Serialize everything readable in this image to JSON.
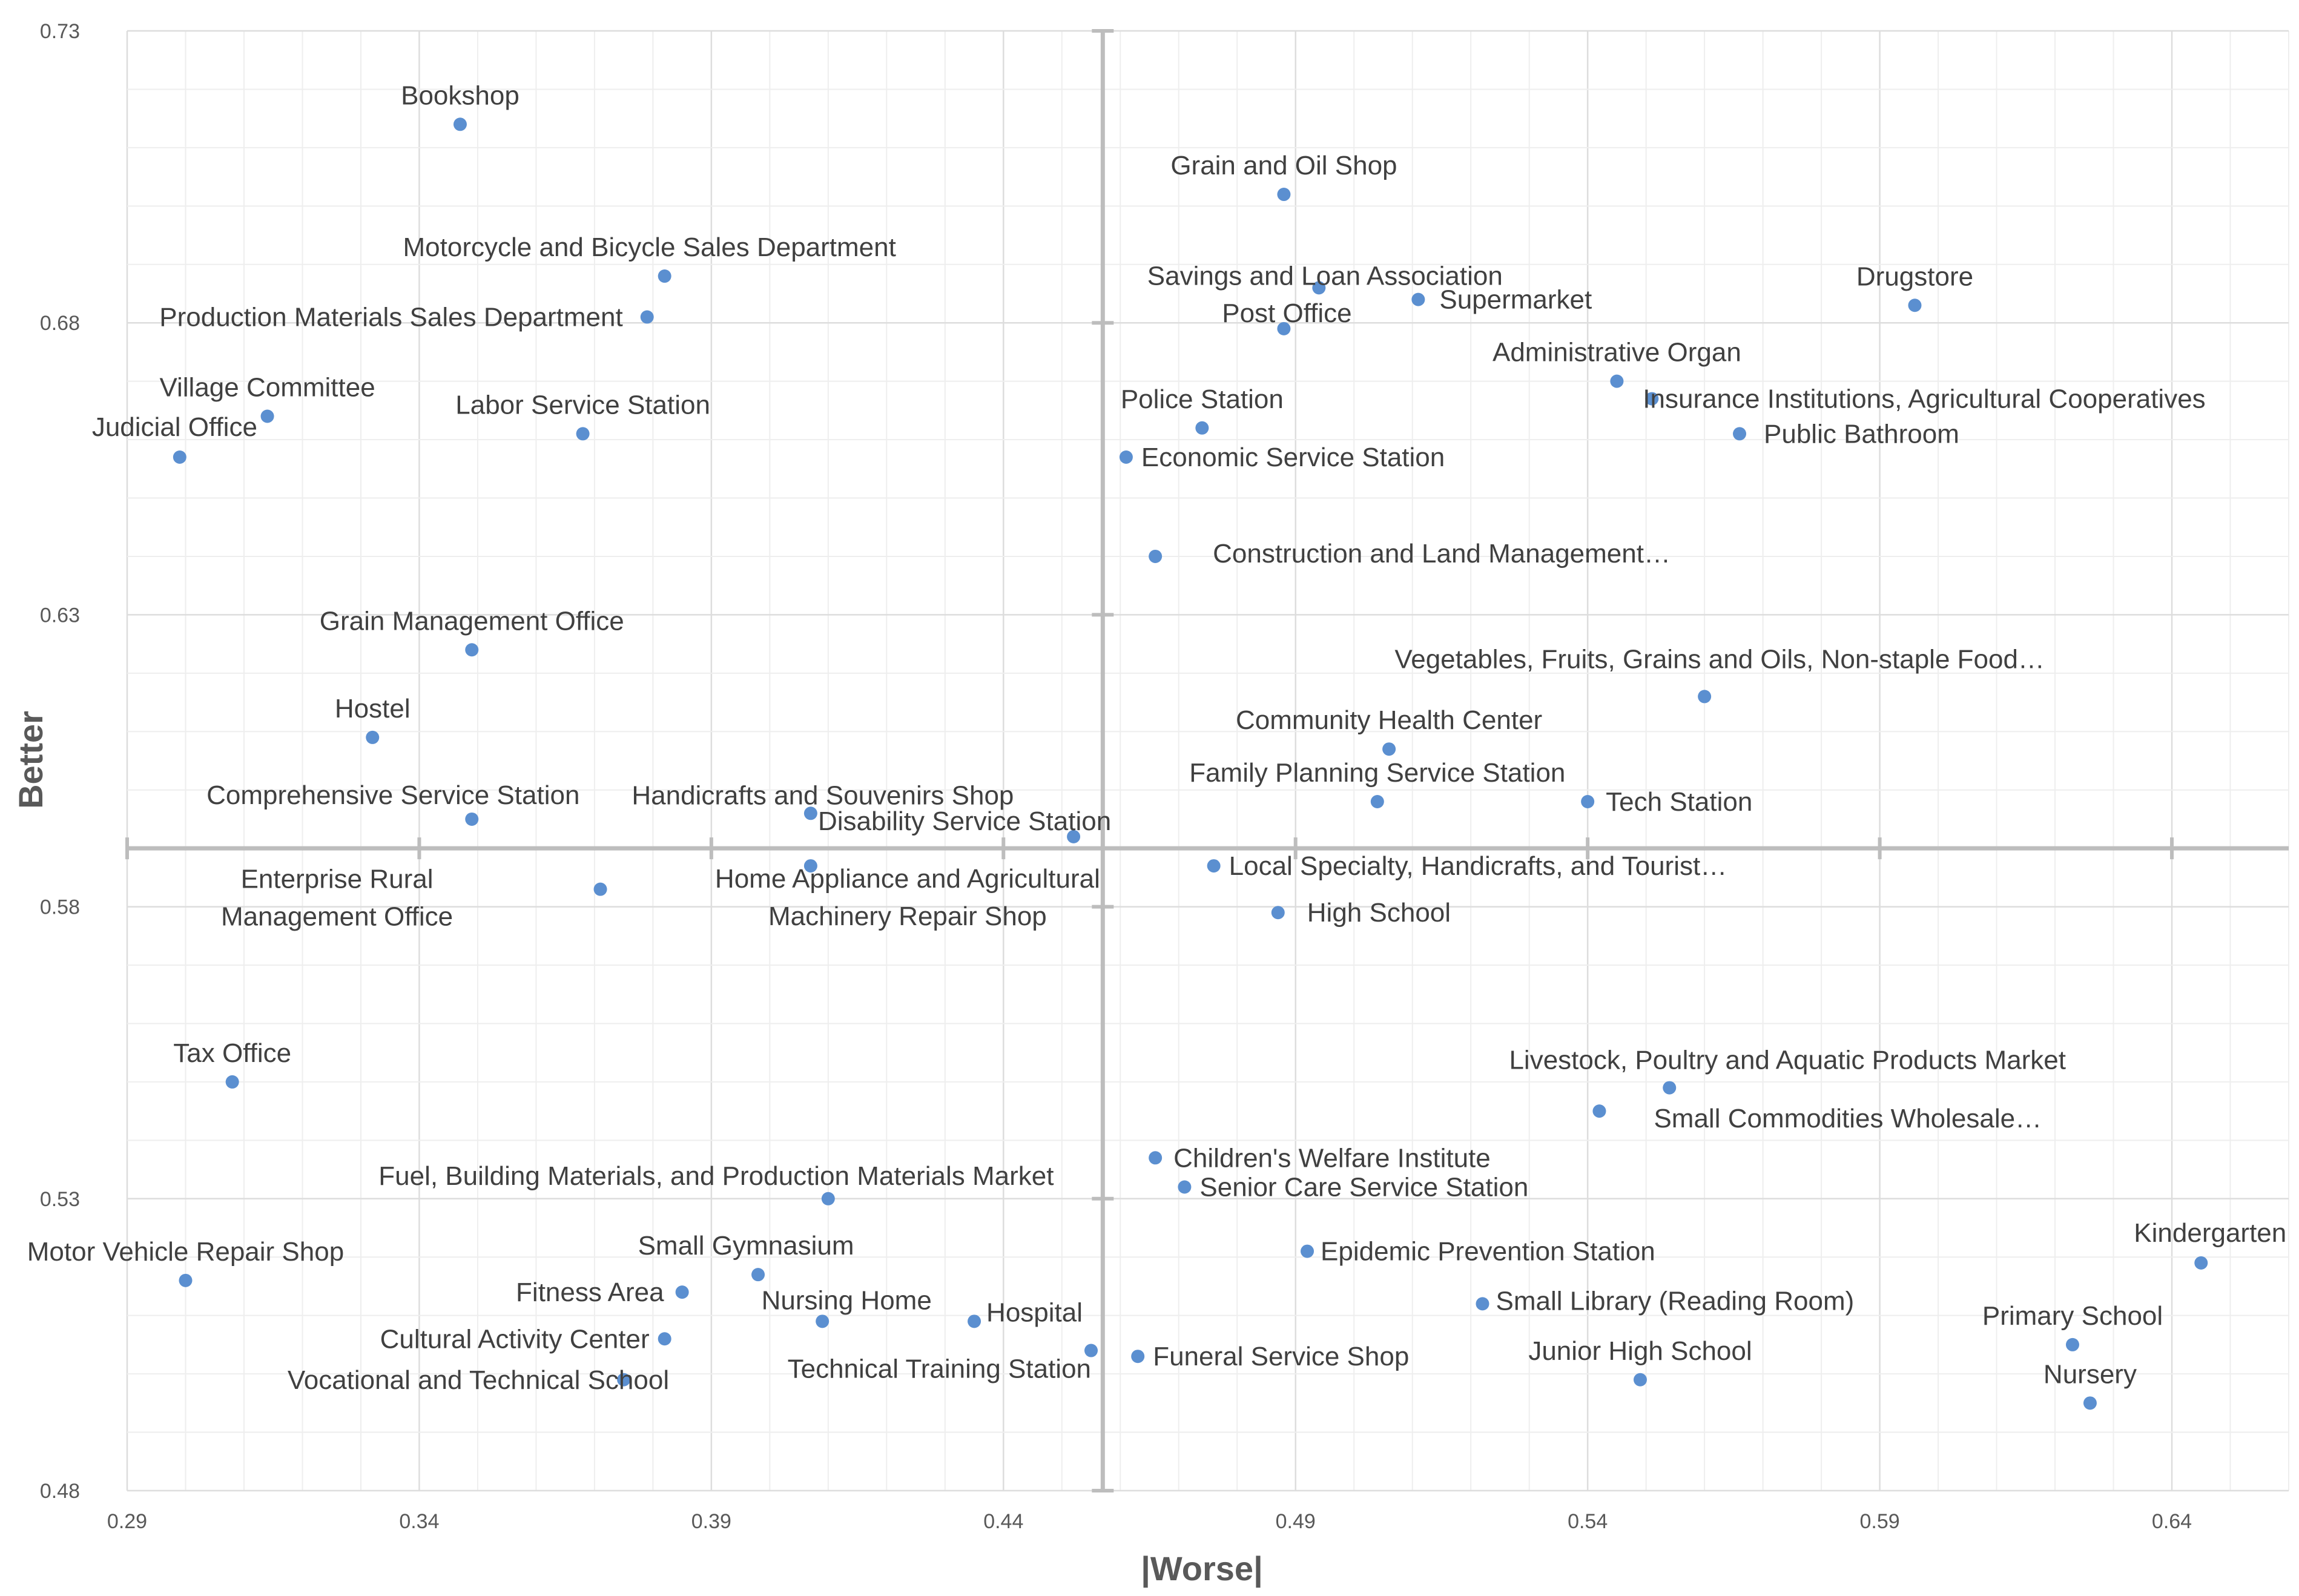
{
  "chart_data": {
    "type": "scatter",
    "title": "",
    "xlabel": "|Worse|",
    "ylabel": "Better",
    "xlim": [
      0.29,
      0.66
    ],
    "ylim": [
      0.48,
      0.73
    ],
    "x_ticks": [
      "0.29",
      "0.34",
      "0.39",
      "0.44",
      "0.49",
      "0.54",
      "0.59",
      "0.64"
    ],
    "y_ticks": [
      "0.48",
      "0.53",
      "0.58",
      "0.63",
      "0.68",
      "0.73"
    ],
    "quadrant_lines": {
      "x": 0.457,
      "y": 0.59
    },
    "grid": true,
    "legend": "none",
    "points": [
      {
        "label": "Bookshop",
        "x": 0.347,
        "y": 0.714
      },
      {
        "label": "Grain and Oil Shop",
        "x": 0.488,
        "y": 0.702
      },
      {
        "label": "Motorcycle and Bicycle Sales Department",
        "x": 0.382,
        "y": 0.688
      },
      {
        "label": "Savings and Loan Association",
        "x": 0.494,
        "y": 0.686
      },
      {
        "label": "Supermarket",
        "x": 0.511,
        "y": 0.684
      },
      {
        "label": "Drugstore",
        "x": 0.596,
        "y": 0.683
      },
      {
        "label": "Production Materials Sales Department",
        "x": 0.379,
        "y": 0.681
      },
      {
        "label": "Post Office",
        "x": 0.488,
        "y": 0.679
      },
      {
        "label": "Administrative Organ",
        "x": 0.545,
        "y": 0.67
      },
      {
        "label": "Village Committee",
        "x": 0.314,
        "y": 0.664
      },
      {
        "label": "Judicial Office",
        "x": 0.299,
        "y": 0.657
      },
      {
        "label": "Labor Service Station",
        "x": 0.368,
        "y": 0.661
      },
      {
        "label": "Police Station",
        "x": 0.474,
        "y": 0.662
      },
      {
        "label": "Insurance Institutions, Agricultural Cooperatives",
        "x": 0.551,
        "y": 0.667
      },
      {
        "label": "Public Bathroom",
        "x": 0.566,
        "y": 0.661
      },
      {
        "label": "Economic Service Station",
        "x": 0.461,
        "y": 0.657
      },
      {
        "label": "Construction and Land Management…",
        "x": 0.466,
        "y": 0.64
      },
      {
        "label": "Grain Management Office",
        "x": 0.349,
        "y": 0.624
      },
      {
        "label": "Vegetables, Fruits, Grains and Oils, Non-staple Food…",
        "x": 0.56,
        "y": 0.616
      },
      {
        "label": "Hostel",
        "x": 0.332,
        "y": 0.609
      },
      {
        "label": "Community Health Center",
        "x": 0.506,
        "y": 0.607
      },
      {
        "label": "Family Planning Service Station",
        "x": 0.504,
        "y": 0.598
      },
      {
        "label": "Tech Station",
        "x": 0.54,
        "y": 0.598
      },
      {
        "label": "Handicrafts and Souvenirs Shop",
        "x": 0.407,
        "y": 0.596
      },
      {
        "label": "Comprehensive Service Station",
        "x": 0.349,
        "y": 0.595
      },
      {
        "label": "Disability Service Station",
        "x": 0.452,
        "y": 0.592
      },
      {
        "label": "Local Specialty, Handicrafts, and Tourist…",
        "x": 0.476,
        "y": 0.587
      },
      {
        "label": "Home Appliance and Agricultural Machinery Repair Shop",
        "x": 0.407,
        "y": 0.587
      },
      {
        "label": "Enterprise Rural Management Office",
        "x": 0.371,
        "y": 0.583
      },
      {
        "label": "High School",
        "x": 0.487,
        "y": 0.579
      },
      {
        "label": "Tax Office",
        "x": 0.308,
        "y": 0.55
      },
      {
        "label": "Livestock, Poultry and Aquatic Products Market",
        "x": 0.554,
        "y": 0.549
      },
      {
        "label": "Small Commodities Wholesale…",
        "x": 0.542,
        "y": 0.545
      },
      {
        "label": "Children's Welfare Institute",
        "x": 0.466,
        "y": 0.537
      },
      {
        "label": "Senior Care Service Station",
        "x": 0.471,
        "y": 0.532
      },
      {
        "label": "Fuel, Building Materials, and Production Materials Market",
        "x": 0.41,
        "y": 0.53
      },
      {
        "label": "Small Gymnasium",
        "x": 0.398,
        "y": 0.517
      },
      {
        "label": "Epidemic Prevention Station",
        "x": 0.492,
        "y": 0.521
      },
      {
        "label": "Kindergarten",
        "x": 0.645,
        "y": 0.519
      },
      {
        "label": "Motor Vehicle Repair Shop",
        "x": 0.3,
        "y": 0.516
      },
      {
        "label": "Fitness Area",
        "x": 0.385,
        "y": 0.514
      },
      {
        "label": "Small Library (Reading Room)",
        "x": 0.522,
        "y": 0.512
      },
      {
        "label": "Nursing Home",
        "x": 0.409,
        "y": 0.509
      },
      {
        "label": "Hospital",
        "x": 0.435,
        "y": 0.509
      },
      {
        "label": "Primary School",
        "x": 0.623,
        "y": 0.505
      },
      {
        "label": "Cultural Activity Center",
        "x": 0.382,
        "y": 0.506
      },
      {
        "label": "Technical Training Station",
        "x": 0.455,
        "y": 0.504
      },
      {
        "label": "Funeral Service Shop",
        "x": 0.463,
        "y": 0.503
      },
      {
        "label": "Junior High School",
        "x": 0.549,
        "y": 0.499
      },
      {
        "label": "Vocational and Technical School",
        "x": 0.375,
        "y": 0.499
      },
      {
        "label": "Nursery",
        "x": 0.626,
        "y": 0.495
      }
    ]
  }
}
